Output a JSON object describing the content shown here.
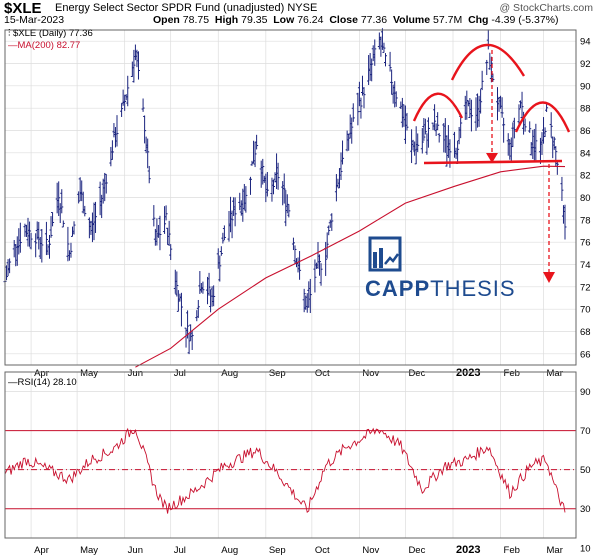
{
  "header": {
    "ticker": "$XLE",
    "fullname": "Energy Select Sector SPDR Fund (unadjusted)",
    "exchange": "NYSE",
    "brand": "@ StockCharts.com",
    "date": "15-Mar-2023",
    "open_label": "Open",
    "open": "78.75",
    "high_label": "High",
    "high": "79.35",
    "low_label": "Low",
    "low": "76.24",
    "close_label": "Close",
    "close": "77.36",
    "volume_label": "Volume",
    "volume": "57.7M",
    "chg_label": "Chg",
    "chg": "-4.39 (-5.37%)"
  },
  "legend": {
    "price": "$XLE (Daily) 77.36",
    "ma": "MA(200) 82.77",
    "rsi": "RSI(14) 28.10"
  },
  "logo": {
    "word1": "CAPP",
    "word2": "THESIS"
  },
  "colors": {
    "bars": "#1a237e",
    "ma": "#c8102e",
    "annot": "#e8141c",
    "grid": "#dddddd",
    "logo": "#1e4b8f"
  },
  "chart_data": [
    {
      "type": "ohlc",
      "title": "$XLE (Daily) 77.36",
      "x_ticks": [
        "Apr",
        "May",
        "Jun",
        "Jul",
        "Aug",
        "Sep",
        "Oct",
        "Nov",
        "Dec",
        "2023",
        "Feb",
        "Mar"
      ],
      "ylim": [
        65,
        95
      ],
      "y_ticks": [
        66,
        68,
        70,
        72,
        74,
        76,
        78,
        80,
        82,
        84,
        86,
        88,
        90,
        92,
        94
      ],
      "grid": true,
      "close_path": [
        [
          "2022-03-15",
          72.5
        ],
        [
          "2022-03-22",
          76.0
        ],
        [
          "2022-03-29",
          77.0
        ],
        [
          "2022-04-05",
          76.5
        ],
        [
          "2022-04-12",
          75.5
        ],
        [
          "2022-04-19",
          80.5
        ],
        [
          "2022-04-26",
          75.0
        ],
        [
          "2022-05-03",
          80.5
        ],
        [
          "2022-05-10",
          77.0
        ],
        [
          "2022-05-17",
          80.0
        ],
        [
          "2022-05-24",
          84.5
        ],
        [
          "2022-05-31",
          88.0
        ],
        [
          "2022-06-08",
          93.0
        ],
        [
          "2022-06-14",
          86.5
        ],
        [
          "2022-06-21",
          76.0
        ],
        [
          "2022-06-28",
          78.0
        ],
        [
          "2022-07-05",
          72.0
        ],
        [
          "2022-07-12",
          68.0
        ],
        [
          "2022-07-15",
          67.5
        ],
        [
          "2022-07-21",
          72.5
        ],
        [
          "2022-07-28",
          71.0
        ],
        [
          "2022-08-05",
          76.5
        ],
        [
          "2022-08-12",
          79.0
        ],
        [
          "2022-08-19",
          80.0
        ],
        [
          "2022-08-26",
          85.0
        ],
        [
          "2022-09-02",
          80.0
        ],
        [
          "2022-09-09",
          82.0
        ],
        [
          "2022-09-16",
          79.0
        ],
        [
          "2022-09-23",
          73.0
        ],
        [
          "2022-09-28",
          70.0
        ],
        [
          "2022-10-03",
          73.0
        ],
        [
          "2022-10-10",
          75.0
        ],
        [
          "2022-10-17",
          81.0
        ],
        [
          "2022-10-24",
          85.0
        ],
        [
          "2022-10-31",
          88.0
        ],
        [
          "2022-11-07",
          91.0
        ],
        [
          "2022-11-14",
          94.0
        ],
        [
          "2022-11-21",
          91.0
        ],
        [
          "2022-11-28",
          88.0
        ],
        [
          "2022-12-05",
          84.5
        ],
        [
          "2022-12-12",
          85.0
        ],
        [
          "2022-12-19",
          86.5
        ],
        [
          "2022-12-27",
          85.0
        ],
        [
          "2023-01-03",
          84.5
        ],
        [
          "2023-01-10",
          88.0
        ],
        [
          "2023-01-17",
          87.5
        ],
        [
          "2023-01-24",
          93.0
        ],
        [
          "2023-01-31",
          88.0
        ],
        [
          "2023-02-07",
          84.5
        ],
        [
          "2023-02-14",
          88.5
        ],
        [
          "2023-02-21",
          85.0
        ],
        [
          "2023-02-28",
          84.5
        ],
        [
          "2023-03-03",
          87.5
        ],
        [
          "2023-03-08",
          85.0
        ],
        [
          "2023-03-10",
          83.0
        ],
        [
          "2023-03-13",
          80.0
        ],
        [
          "2023-03-15",
          77.36
        ]
      ],
      "ma200": {
        "name": "MA(200) 82.77",
        "points": [
          [
            "2022-06-08",
            64.8
          ],
          [
            "2022-07-01",
            66.5
          ],
          [
            "2022-08-01",
            70.0
          ],
          [
            "2022-09-01",
            72.8
          ],
          [
            "2022-10-01",
            74.8
          ],
          [
            "2022-11-01",
            77.0
          ],
          [
            "2022-12-01",
            79.5
          ],
          [
            "2023-01-02",
            81.0
          ],
          [
            "2023-02-01",
            82.3
          ],
          [
            "2023-03-01",
            82.8
          ],
          [
            "2023-03-15",
            82.77
          ]
        ]
      },
      "last_bar": {
        "open": 78.75,
        "high": 79.35,
        "low": 76.24,
        "close": 77.36
      }
    },
    {
      "type": "line",
      "title": "RSI(14) 28.10",
      "ylim": [
        15,
        100
      ],
      "y_ticks": [
        10,
        30,
        50,
        70,
        90
      ],
      "hlines": [
        30,
        50,
        70
      ],
      "points": [
        [
          "2022-03-15",
          48
        ],
        [
          "2022-03-29",
          55
        ],
        [
          "2022-04-12",
          50
        ],
        [
          "2022-04-26",
          45
        ],
        [
          "2022-05-10",
          55
        ],
        [
          "2022-05-24",
          60
        ],
        [
          "2022-06-08",
          72
        ],
        [
          "2022-06-21",
          40
        ],
        [
          "2022-06-28",
          30
        ],
        [
          "2022-07-15",
          38
        ],
        [
          "2022-08-05",
          52
        ],
        [
          "2022-08-26",
          60
        ],
        [
          "2022-09-09",
          48
        ],
        [
          "2022-09-28",
          29
        ],
        [
          "2022-10-10",
          52
        ],
        [
          "2022-10-24",
          62
        ],
        [
          "2022-11-07",
          68
        ],
        [
          "2022-11-14",
          71
        ],
        [
          "2022-11-28",
          62
        ],
        [
          "2022-12-12",
          40
        ],
        [
          "2022-12-27",
          52
        ],
        [
          "2023-01-10",
          55
        ],
        [
          "2023-01-24",
          62
        ],
        [
          "2023-02-07",
          38
        ],
        [
          "2023-02-21",
          52
        ],
        [
          "2023-03-03",
          55
        ],
        [
          "2023-03-08",
          42
        ],
        [
          "2023-03-15",
          28.1
        ]
      ]
    }
  ]
}
